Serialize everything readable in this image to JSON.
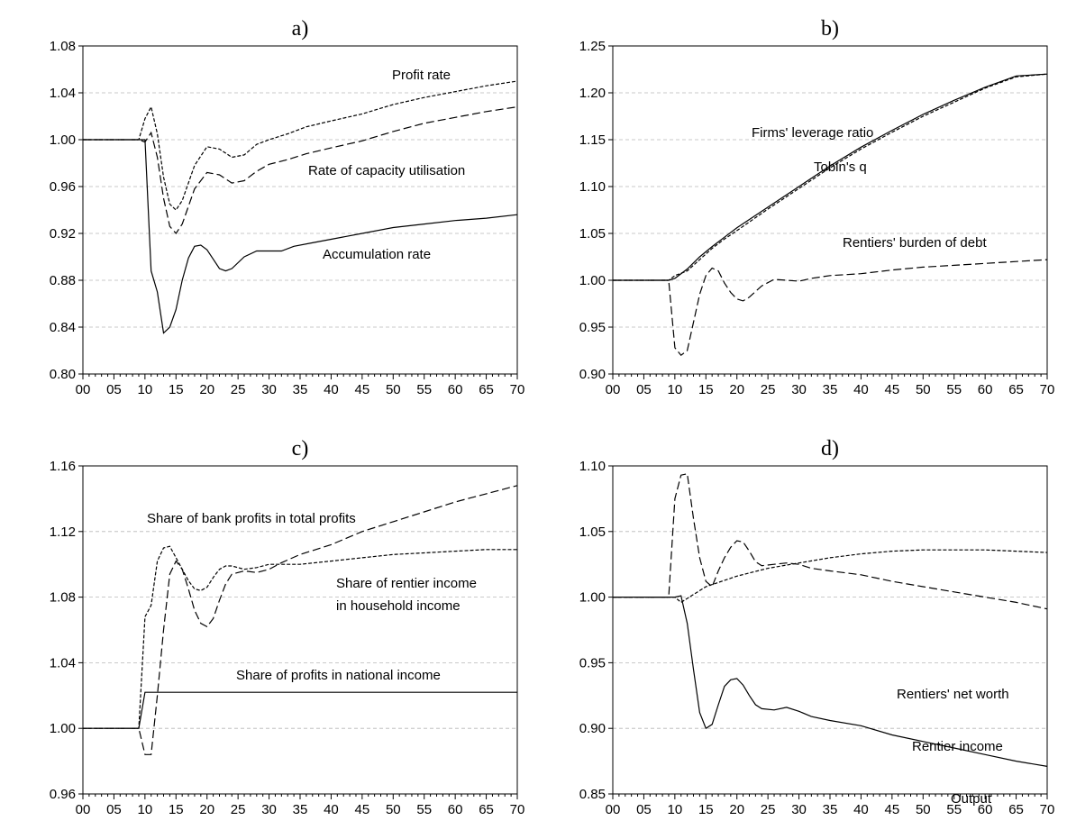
{
  "chart_data": [
    {
      "type": "line",
      "title": "a)",
      "xlabel": "",
      "ylabel": "",
      "x_ticks": [
        "00",
        "05",
        "10",
        "15",
        "20",
        "25",
        "30",
        "35",
        "40",
        "45",
        "50",
        "55",
        "60",
        "65",
        "70"
      ],
      "y_ticks": [
        "0.80",
        "0.84",
        "0.88",
        "0.92",
        "0.96",
        "1.00",
        "1.04",
        "1.08"
      ],
      "xlim": [
        0,
        70
      ],
      "ylim": [
        0.8,
        1.08
      ],
      "grid": true,
      "series": [
        {
          "name": "Profit rate",
          "dash": "short",
          "x": [
            0,
            9,
            10,
            11,
            12,
            13,
            14,
            15,
            16,
            18,
            20,
            22,
            24,
            26,
            28,
            30,
            33,
            36,
            40,
            45,
            50,
            55,
            60,
            65,
            70
          ],
          "y": [
            1.0,
            1.0,
            1.018,
            1.028,
            1.005,
            0.968,
            0.945,
            0.94,
            0.948,
            0.978,
            0.994,
            0.992,
            0.985,
            0.987,
            0.996,
            1.0,
            1.005,
            1.011,
            1.016,
            1.022,
            1.03,
            1.036,
            1.041,
            1.046,
            1.05
          ]
        },
        {
          "name": "Rate of capacity utilisation",
          "dash": "medium",
          "x": [
            0,
            9,
            10,
            11,
            12,
            13,
            14,
            15,
            16,
            18,
            20,
            22,
            24,
            26,
            28,
            30,
            33,
            36,
            40,
            45,
            50,
            55,
            60,
            65,
            70
          ],
          "y": [
            1.0,
            1.0,
            0.998,
            1.006,
            0.985,
            0.95,
            0.926,
            0.92,
            0.928,
            0.958,
            0.972,
            0.97,
            0.963,
            0.965,
            0.973,
            0.979,
            0.983,
            0.988,
            0.993,
            0.999,
            1.007,
            1.014,
            1.019,
            1.024,
            1.028
          ]
        },
        {
          "name": "Accumulation rate",
          "dash": "solid",
          "x": [
            0,
            9,
            10,
            11,
            12,
            13,
            14,
            15,
            16,
            17,
            18,
            19,
            20,
            21,
            22,
            23,
            24,
            26,
            28,
            30,
            32,
            34,
            37,
            40,
            45,
            50,
            55,
            60,
            65,
            70
          ],
          "y": [
            1.0,
            1.0,
            1.0,
            0.888,
            0.87,
            0.835,
            0.84,
            0.855,
            0.88,
            0.899,
            0.909,
            0.91,
            0.906,
            0.898,
            0.89,
            0.888,
            0.89,
            0.9,
            0.905,
            0.905,
            0.905,
            0.909,
            0.912,
            0.915,
            0.92,
            0.925,
            0.928,
            0.931,
            0.933,
            0.936
          ]
        }
      ],
      "annotations": [
        "Profit rate",
        "Rate of capacity utilisation",
        "Accumulation rate"
      ]
    },
    {
      "type": "line",
      "title": "b)",
      "xlabel": "",
      "ylabel": "",
      "x_ticks": [
        "00",
        "05",
        "10",
        "15",
        "20",
        "25",
        "30",
        "35",
        "40",
        "45",
        "50",
        "55",
        "60",
        "65",
        "70"
      ],
      "y_ticks": [
        "0.90",
        "0.95",
        "1.00",
        "1.05",
        "1.10",
        "1.15",
        "1.20",
        "1.25"
      ],
      "xlim": [
        0,
        70
      ],
      "ylim": [
        0.9,
        1.25
      ],
      "grid": true,
      "series": [
        {
          "name": "Firms' leverage ratio",
          "dash": "solid",
          "x": [
            0,
            9,
            10,
            12,
            14,
            16,
            18,
            20,
            25,
            30,
            35,
            40,
            45,
            50,
            55,
            60,
            65,
            70
          ],
          "y": [
            1.0,
            1.0,
            1.002,
            1.012,
            1.025,
            1.036,
            1.046,
            1.056,
            1.078,
            1.1,
            1.122,
            1.142,
            1.16,
            1.177,
            1.192,
            1.206,
            1.218,
            1.22
          ]
        },
        {
          "name": "Tobin's q",
          "dash": "short",
          "x": [
            0,
            9,
            10,
            12,
            14,
            16,
            18,
            20,
            25,
            30,
            35,
            40,
            45,
            50,
            55,
            60,
            65,
            70
          ],
          "y": [
            1.0,
            1.0,
            1.005,
            1.01,
            1.022,
            1.034,
            1.044,
            1.053,
            1.076,
            1.098,
            1.12,
            1.14,
            1.158,
            1.175,
            1.19,
            1.205,
            1.217,
            1.22
          ]
        },
        {
          "name": "Rentiers' burden of debt",
          "dash": "medium",
          "x": [
            0,
            9,
            10,
            11,
            12,
            13,
            14,
            15,
            16,
            17,
            18,
            19,
            20,
            21,
            22,
            24,
            26,
            28,
            30,
            32,
            35,
            40,
            45,
            50,
            55,
            60,
            65,
            70
          ],
          "y": [
            1.0,
            1.0,
            0.928,
            0.92,
            0.925,
            0.955,
            0.985,
            1.005,
            1.013,
            1.01,
            0.997,
            0.987,
            0.98,
            0.978,
            0.982,
            0.994,
            1.001,
            1.0,
            0.999,
            1.002,
            1.005,
            1.007,
            1.011,
            1.014,
            1.016,
            1.018,
            1.02,
            1.022
          ]
        }
      ],
      "annotations": [
        "Firms' leverage ratio",
        "Tobin's q",
        "Rentiers' burden of debt"
      ]
    },
    {
      "type": "line",
      "title": "c)",
      "xlabel": "",
      "ylabel": "",
      "x_ticks": [
        "00",
        "05",
        "10",
        "15",
        "20",
        "25",
        "30",
        "35",
        "40",
        "45",
        "50",
        "55",
        "60",
        "65",
        "70"
      ],
      "y_ticks": [
        "0.96",
        "1.00",
        "1.04",
        "1.08",
        "1.12",
        "1.16"
      ],
      "xlim": [
        0,
        70
      ],
      "ylim": [
        0.96,
        1.16
      ],
      "grid": true,
      "series": [
        {
          "name": "Share of bank profits in total profits",
          "dash": "medium",
          "x": [
            0,
            9,
            10,
            11,
            12,
            13,
            14,
            15,
            16,
            17,
            18,
            19,
            20,
            21,
            22,
            23,
            24,
            26,
            28,
            30,
            32,
            35,
            40,
            45,
            50,
            55,
            60,
            65,
            70
          ],
          "y": [
            1.0,
            1.0,
            0.984,
            0.984,
            1.02,
            1.06,
            1.094,
            1.102,
            1.097,
            1.085,
            1.072,
            1.064,
            1.062,
            1.067,
            1.078,
            1.088,
            1.094,
            1.096,
            1.095,
            1.097,
            1.101,
            1.106,
            1.112,
            1.12,
            1.126,
            1.132,
            1.138,
            1.143,
            1.148
          ]
        },
        {
          "name": "Share of rentier income in household income",
          "dash": "short",
          "x": [
            0,
            9,
            10,
            11,
            12,
            13,
            14,
            15,
            16,
            17,
            18,
            19,
            20,
            21,
            22,
            23,
            24,
            26,
            28,
            30,
            35,
            40,
            45,
            50,
            55,
            60,
            65,
            70
          ],
          "y": [
            1.0,
            1.0,
            1.068,
            1.075,
            1.102,
            1.11,
            1.111,
            1.104,
            1.097,
            1.09,
            1.085,
            1.084,
            1.086,
            1.092,
            1.097,
            1.099,
            1.099,
            1.097,
            1.098,
            1.1,
            1.1,
            1.102,
            1.104,
            1.106,
            1.107,
            1.108,
            1.109,
            1.109
          ]
        },
        {
          "name": "Share of profits in national income",
          "dash": "solid",
          "x": [
            0,
            9,
            10,
            70
          ],
          "y": [
            1.0,
            1.0,
            1.022,
            1.022
          ]
        }
      ],
      "annotations": [
        "Share of bank profits in total profits",
        "Share of rentier income",
        "in household income",
        "Share of profits in national income"
      ]
    },
    {
      "type": "line",
      "title": "d)",
      "xlabel": "",
      "ylabel": "",
      "x_ticks": [
        "00",
        "05",
        "10",
        "15",
        "20",
        "25",
        "30",
        "35",
        "40",
        "45",
        "50",
        "55",
        "60",
        "65",
        "70"
      ],
      "y_ticks": [
        "0.85",
        "0.90",
        "0.95",
        "1.00",
        "1.05",
        "1.10"
      ],
      "xlim": [
        0,
        70
      ],
      "ylim": [
        0.85,
        1.1
      ],
      "grid": true,
      "series": [
        {
          "name": "Rentiers' net worth",
          "dash": "short",
          "x": [
            0,
            9,
            10,
            11,
            15,
            20,
            25,
            30,
            35,
            40,
            45,
            50,
            55,
            60,
            65,
            70
          ],
          "y": [
            1.0,
            1.0,
            1.0,
            0.996,
            1.008,
            1.016,
            1.022,
            1.026,
            1.03,
            1.033,
            1.035,
            1.036,
            1.036,
            1.036,
            1.035,
            1.034
          ]
        },
        {
          "name": "Rentier income",
          "dash": "medium",
          "x": [
            0,
            9,
            10,
            11,
            12,
            13,
            14,
            15,
            16,
            17,
            18,
            19,
            20,
            21,
            22,
            23,
            24,
            26,
            28,
            30,
            32,
            35,
            40,
            45,
            50,
            55,
            60,
            65,
            70
          ],
          "y": [
            1.0,
            1.0,
            1.075,
            1.093,
            1.094,
            1.06,
            1.03,
            1.012,
            1.008,
            1.02,
            1.03,
            1.038,
            1.043,
            1.042,
            1.035,
            1.027,
            1.024,
            1.025,
            1.026,
            1.025,
            1.022,
            1.02,
            1.017,
            1.012,
            1.008,
            1.004,
            1.0,
            0.996,
            0.991
          ]
        },
        {
          "name": "Output",
          "dash": "solid",
          "x": [
            0,
            9,
            10,
            11,
            12,
            13,
            14,
            15,
            16,
            17,
            18,
            19,
            20,
            21,
            22,
            23,
            24,
            26,
            28,
            30,
            32,
            35,
            40,
            45,
            50,
            55,
            60,
            65,
            70
          ],
          "y": [
            1.0,
            1.0,
            1.0,
            1.001,
            0.98,
            0.945,
            0.912,
            0.9,
            0.903,
            0.918,
            0.932,
            0.937,
            0.938,
            0.933,
            0.925,
            0.918,
            0.915,
            0.914,
            0.916,
            0.913,
            0.909,
            0.906,
            0.902,
            0.895,
            0.89,
            0.885,
            0.88,
            0.875,
            0.871
          ]
        }
      ],
      "annotations": [
        "Rentiers' net worth",
        "Rentier income",
        "Output"
      ]
    }
  ]
}
